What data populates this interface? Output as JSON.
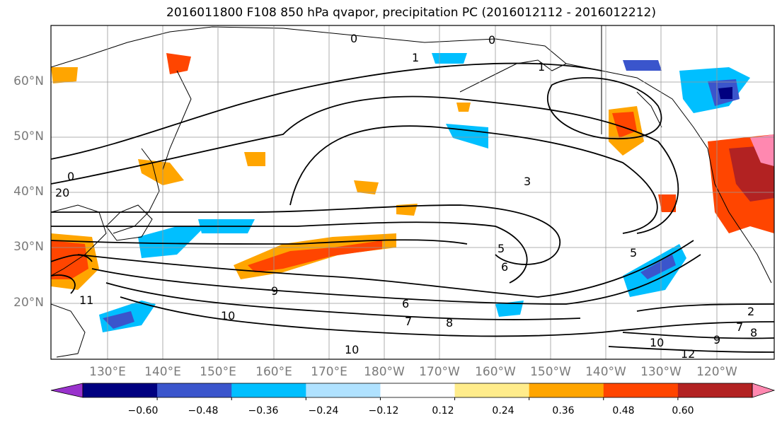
{
  "title": "2016011800 F108 850 hPa qvapor, precipitation PC (2016012112 - 2016012212)",
  "lat_labels": [
    "60°N",
    "50°N",
    "40°N",
    "30°N",
    "20°N"
  ],
  "lon_labels": [
    "130°E",
    "140°E",
    "150°E",
    "160°E",
    "170°E",
    "180°W",
    "170°W",
    "160°W",
    "150°W",
    "140°W",
    "130°W",
    "120°W"
  ],
  "colorbar": {
    "colors": [
      "#9932cc",
      "#000080",
      "#3a55cc",
      "#00bfff",
      "#b0e2ff",
      "#ffffff",
      "#ffec8b",
      "#ffa500",
      "#ff4500",
      "#b22222",
      "#ff88b0"
    ],
    "tick_labels": [
      "−0.60",
      "−0.48",
      "−0.36",
      "−0.24",
      "−0.12",
      "0.12",
      "0.24",
      "0.36",
      "0.48",
      "0.60"
    ]
  },
  "contour_labels": [
    "0",
    "1",
    "3",
    "5",
    "6",
    "7",
    "8",
    "9",
    "10",
    "11",
    "12",
    "2",
    "20"
  ]
}
